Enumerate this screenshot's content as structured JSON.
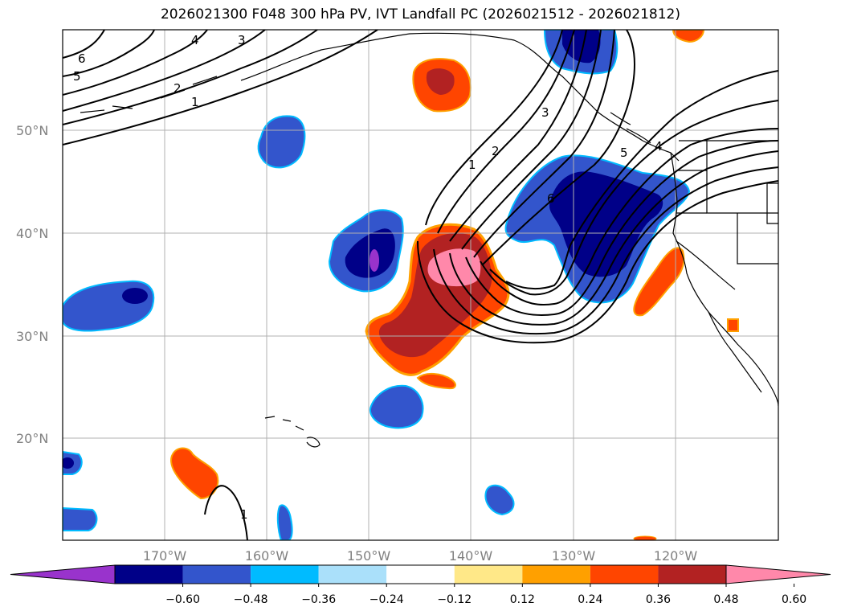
{
  "title": "2026021300 F048 300 hPa PV, IVT Landfall PC (2026021512 - 2026021812)",
  "latitude_labels": [
    "50°N",
    "40°N",
    "30°N",
    "20°N"
  ],
  "longitude_labels": [
    "170°W",
    "160°W",
    "150°W",
    "140°W",
    "130°W",
    "120°W"
  ],
  "colorbar": {
    "ticks": [
      "−0.60",
      "−0.48",
      "−0.36",
      "−0.24",
      "−0.12",
      "0.12",
      "0.24",
      "0.36",
      "0.48",
      "0.60"
    ],
    "colors": [
      "#9933cc",
      "#000088",
      "#3355cc",
      "#00bbff",
      "#aae0fa",
      "#ffffff",
      "#ffe888",
      "#ffa000",
      "#ff4500",
      "#b22222",
      "#ff88aa"
    ]
  },
  "contour_labels": [
    "6",
    "5",
    "4",
    "3",
    "2",
    "1",
    "1",
    "2",
    "3",
    "4",
    "5",
    "6",
    "1"
  ],
  "colors": {
    "contour": "#000000",
    "grid": "#b0b0b0",
    "coast": "#000000",
    "axis_label": "#808080"
  }
}
